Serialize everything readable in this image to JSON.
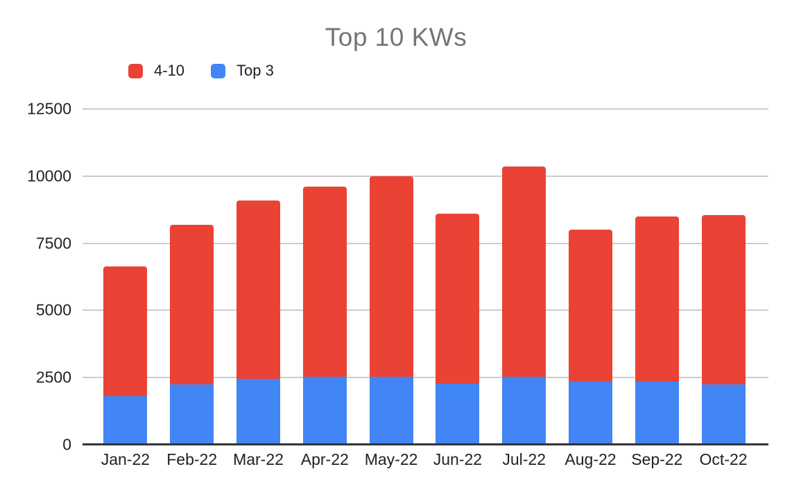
{
  "chart_data": {
    "type": "bar",
    "stacked": true,
    "title": "Top 10 KWs",
    "categories": [
      "Jan-22",
      "Feb-22",
      "Mar-22",
      "Apr-22",
      "May-22",
      "Jun-22",
      "Jul-22",
      "Aug-22",
      "Sep-22",
      "Oct-22"
    ],
    "series": [
      {
        "name": "Top 3",
        "color": "#4285F4",
        "values": [
          1800,
          2250,
          2450,
          2520,
          2520,
          2270,
          2520,
          2340,
          2360,
          2250
        ]
      },
      {
        "name": "4-10",
        "color": "#EA4335",
        "values": [
          4850,
          5950,
          6650,
          7080,
          7480,
          6330,
          7830,
          5660,
          6140,
          6300
        ]
      }
    ],
    "stack_totals": [
      6650,
      8200,
      9100,
      9600,
      10000,
      8600,
      10350,
      8000,
      8500,
      8550
    ],
    "legend": [
      {
        "label": "4-10",
        "series": "4-10",
        "color": "#EA4335"
      },
      {
        "label": "Top 3",
        "series": "Top 3",
        "color": "#4285F4"
      }
    ],
    "legend_position": "top-left",
    "xlabel": "",
    "ylabel": "",
    "y_ticks": [
      0,
      2500,
      5000,
      7500,
      10000,
      12500
    ],
    "ylim": [
      0,
      12500
    ],
    "grid": true
  },
  "style": {
    "background": "#FFFFFF",
    "title_color": "#757575",
    "label_color": "#202124",
    "gridline_color": "#CCCCCC",
    "axis_color": "#333333"
  }
}
